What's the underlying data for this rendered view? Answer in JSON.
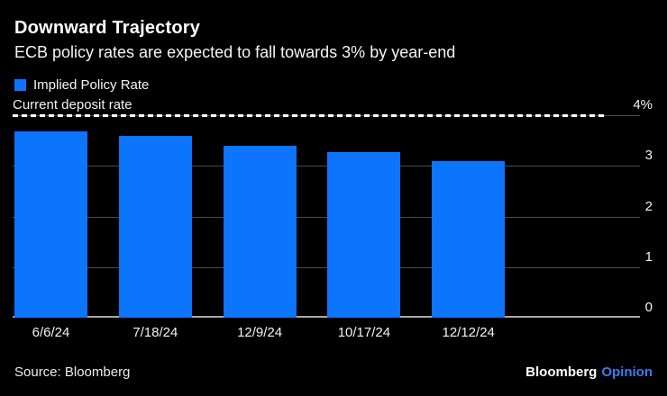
{
  "header": {
    "title": "Downward Trajectory",
    "subtitle": "ECB policy rates are expected to fall towards 3% by year-end"
  },
  "legend": {
    "label": "Implied Policy Rate",
    "swatch_color": "#0D74FC"
  },
  "chart_data": {
    "type": "bar",
    "title": "Downward Trajectory",
    "subtitle": "ECB policy rates are expected to fall towards 3% by year-end",
    "series_name": "Implied Policy Rate",
    "categories": [
      "6/6/24",
      "7/18/24",
      "12/9/24",
      "10/17/24",
      "12/12/24"
    ],
    "values": [
      3.68,
      3.6,
      3.4,
      3.28,
      3.1
    ],
    "xlabel": "",
    "ylabel": "",
    "ylim": [
      0,
      4
    ],
    "yticks": [
      0,
      1,
      2,
      3,
      4
    ],
    "ytick_labels": [
      "0",
      "1",
      "2",
      "3",
      "4%"
    ],
    "grid": true,
    "legend_position": "top-left",
    "bar_color": "#0D74FC",
    "reference_line": {
      "label": "Current deposit rate",
      "value": 4,
      "style": "dashed",
      "color": "#FFFFFF"
    }
  },
  "footer": {
    "source": "Source: Bloomberg",
    "brand_name": "Bloomberg",
    "brand_suffix": "Opinion",
    "brand_suffix_color": "#3B7CEF"
  },
  "colors": {
    "background": "#000000",
    "bar": "#0D74FC",
    "gridline": "#4B4B4B",
    "baseline": "#A9A9A9",
    "text": "#FFFFFF"
  }
}
